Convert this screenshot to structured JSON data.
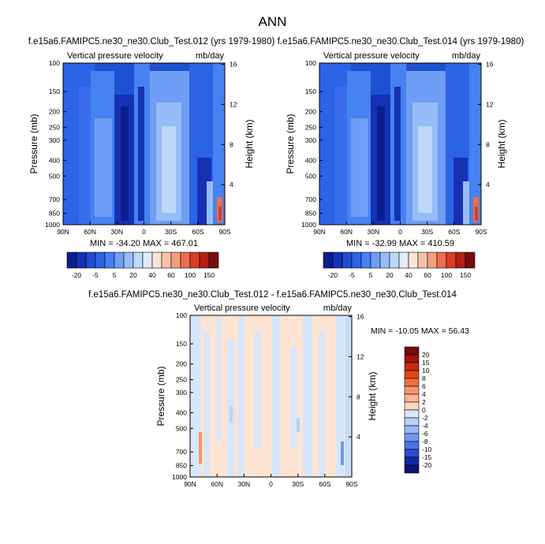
{
  "page_title": "ANN",
  "panels": [
    {
      "title": "f.e15a6.FAMIPC5.ne30_ne30.Club_Test.012 (yrs 1979-1980)",
      "left_label": "Vertical pressure velocity",
      "right_label": "mb/day",
      "stats": "MIN = -34.20  MAX = 467.01"
    },
    {
      "title": "f.e15a6.FAMIPC5.ne30_ne30.Club_Test.014 (yrs 1979-1980)",
      "left_label": "Vertical pressure velocity",
      "right_label": "mb/day",
      "stats": "MIN = -32.99  MAX = 410.59"
    },
    {
      "title": "f.e15a6.FAMIPC5.ne30_ne30.Club_Test.012 - f.e15a6.FAMIPC5.ne30_ne30.Club_Test.014",
      "left_label": "Vertical pressure velocity",
      "right_label": "mb/day",
      "stats": "MIN = -10.05  MAX =  56.43"
    }
  ],
  "chart_data": {
    "type": "heatmap",
    "y_axis_label": "Pressure (mb)",
    "y2_axis_label": "Height (km)",
    "pressure_ticks": [
      100,
      150,
      200,
      250,
      300,
      400,
      500,
      700,
      850,
      1000
    ],
    "height_ticks": [
      4,
      8,
      12,
      16
    ],
    "lat_ticks": [
      "90N",
      "60N",
      "30N",
      "0",
      "30S",
      "60S",
      "90S"
    ],
    "main_colorbar": {
      "labels": [
        "-20",
        "-5",
        "5",
        "20",
        "40",
        "60",
        "100",
        "150"
      ],
      "colors": [
        "#0a1e8c",
        "#1432b4",
        "#1e4bd2",
        "#2d64e6",
        "#4682f0",
        "#6e9ef5",
        "#96bdf8",
        "#bed7fa",
        "#e1ecfc",
        "#fce4d6",
        "#fac3a8",
        "#f59e7e",
        "#ee6e4e",
        "#dc3c28",
        "#b41e14",
        "#780a0a"
      ]
    },
    "diff_colorbar": {
      "labels": [
        "20",
        "15",
        "10",
        "8",
        "6",
        "4",
        "2",
        "0",
        "-2",
        "-4",
        "-6",
        "-8",
        "-10",
        "-15",
        "-20"
      ],
      "colors": [
        "#780a0a",
        "#a0140a",
        "#c8280f",
        "#e64614",
        "#f06e3c",
        "#f5966e",
        "#fab496",
        "#fdd7be",
        "#d7e6fa",
        "#b9d2f8",
        "#96b9f5",
        "#7397f0",
        "#4b73e6",
        "#2d4bd2",
        "#1428aa",
        "#0a1478"
      ]
    }
  }
}
